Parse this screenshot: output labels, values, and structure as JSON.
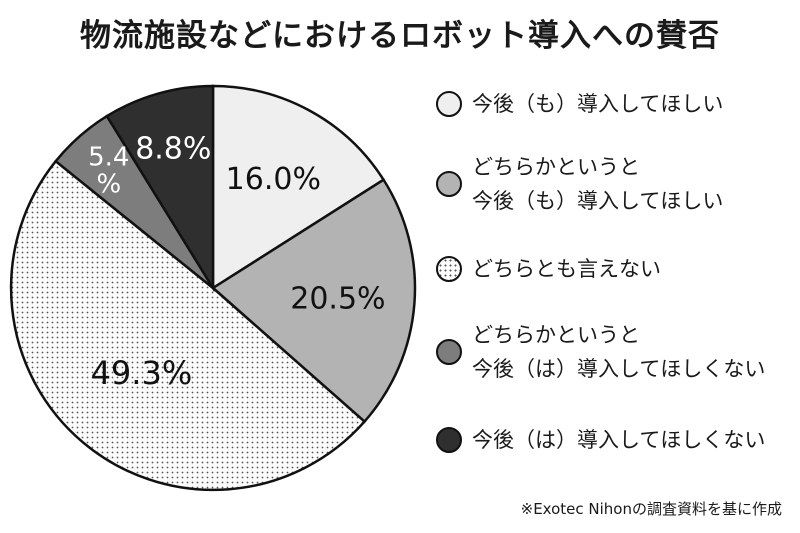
{
  "chart_data": {
    "type": "pie",
    "title": "物流施設などにおけるロボット導入への賛否",
    "categories": [
      "今後（も）導入してほしい",
      "どちらかというと\n今後（も）導入してほしい",
      "どちらとも言えない",
      "どちらかというと\n今後（は）導入してほしくない",
      "今後（は）導入してほしくない"
    ],
    "values": [
      16.0,
      20.5,
      49.3,
      5.4,
      8.8
    ],
    "labels": [
      "16.0%",
      "20.5%",
      "49.3%",
      "5.4\n%",
      "8.8%"
    ],
    "colors": [
      "#efefef",
      "#b3b3b3",
      "#f7f7f7",
      "#7d7d7d",
      "#2f2f2f"
    ],
    "patterns": [
      "solid",
      "solid",
      "dotted",
      "solid",
      "solid"
    ],
    "legend_position": "right",
    "start_angle_deg": 0,
    "direction": "clockwise"
  },
  "source_note": "※Exotec Nihonの調査資料を基に作成"
}
